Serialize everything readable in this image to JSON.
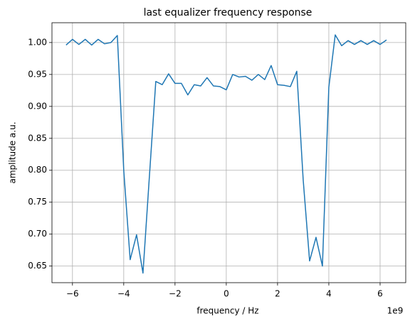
{
  "chart_data": {
    "type": "line",
    "title": "last equalizer frequency response",
    "x_label": "frequency / Hz",
    "y_label": "amplitude a.u.",
    "x_offset_label": "1e9",
    "x": [
      -6.25,
      -6.0,
      -5.75,
      -5.5,
      -5.25,
      -5.0,
      -4.75,
      -4.5,
      -4.25,
      -4.0,
      -3.75,
      -3.5,
      -3.25,
      -3.0,
      -2.75,
      -2.5,
      -2.25,
      -2.0,
      -1.75,
      -1.5,
      -1.25,
      -1.0,
      -0.75,
      -0.5,
      -0.25,
      0,
      0.25,
      0.5,
      0.75,
      1.0,
      1.25,
      1.5,
      1.75,
      2.0,
      2.25,
      2.5,
      2.75,
      3.0,
      3.25,
      3.5,
      3.75,
      4.0,
      4.25,
      4.5,
      4.75,
      5.0,
      5.25,
      5.5,
      5.75,
      6.0,
      6.25
    ],
    "series": [
      {
        "color": "#1f77b4",
        "values": [
          0.996,
          1.005,
          0.997,
          1.005,
          0.996,
          1.005,
          0.998,
          1.0,
          1.011,
          0.8,
          0.66,
          0.699,
          0.639,
          0.79,
          0.939,
          0.934,
          0.951,
          0.936,
          0.936,
          0.918,
          0.934,
          0.932,
          0.945,
          0.932,
          0.931,
          0.926,
          0.95,
          0.946,
          0.947,
          0.941,
          0.95,
          0.942,
          0.964,
          0.934,
          0.933,
          0.931,
          0.955,
          0.785,
          0.658,
          0.695,
          0.65,
          0.93,
          1.012,
          0.995,
          1.003,
          0.997,
          1.003,
          0.997,
          1.003,
          0.997,
          1.004
        ]
      }
    ],
    "xlim": [
      -6.8,
      7.0
    ],
    "ylim": [
      0.624,
      1.031
    ],
    "xticks": [
      {
        "value": -6,
        "label": "−6"
      },
      {
        "value": -4,
        "label": "−4"
      },
      {
        "value": -2,
        "label": "−2"
      },
      0,
      2,
      4,
      6
    ],
    "yticks": [
      0.65,
      {
        "value": 0.7,
        "label": "0.70"
      },
      0.75,
      {
        "value": 0.8,
        "label": "0.80"
      },
      0.85,
      {
        "value": 0.9,
        "label": "0.90"
      },
      0.95,
      {
        "value": 1.0,
        "label": "1.00"
      }
    ],
    "grid": true
  }
}
